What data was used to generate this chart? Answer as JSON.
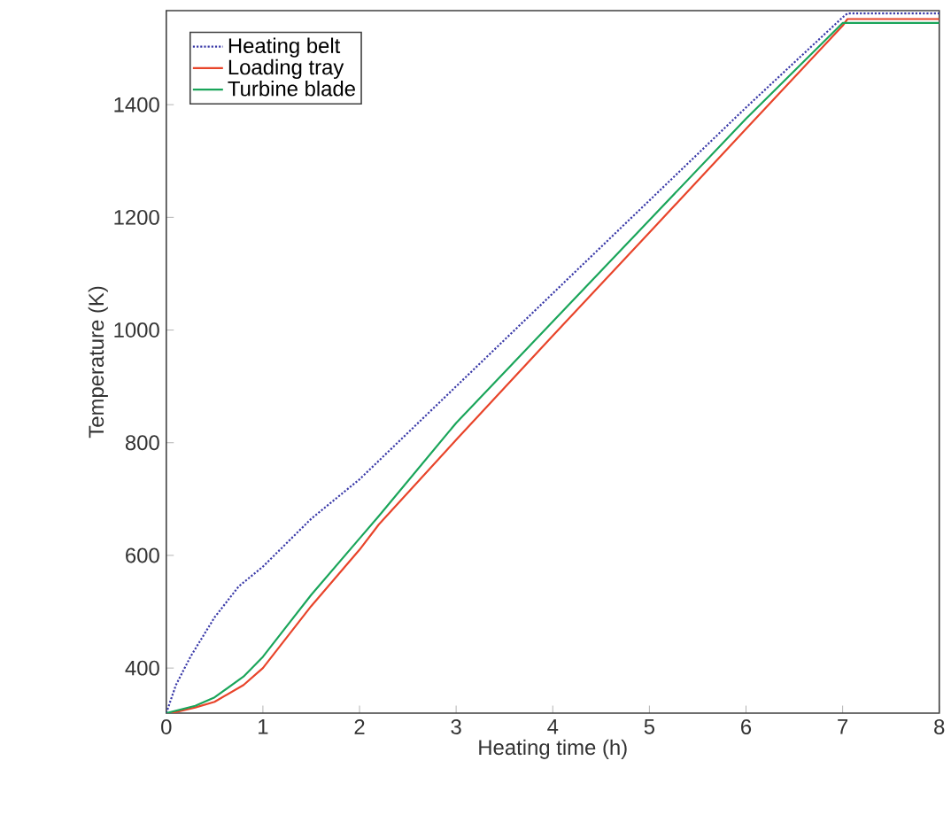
{
  "chart_data": {
    "type": "line",
    "xlabel": "Heating time (h)",
    "ylabel": "Temperature (K)",
    "xlim": [
      0,
      8
    ],
    "ylim": [
      320,
      1567
    ],
    "xticks": [
      0,
      1,
      2,
      3,
      4,
      5,
      6,
      7,
      8
    ],
    "yticks": [
      400,
      600,
      800,
      1000,
      1200,
      1400
    ],
    "grid": false,
    "legend": "top left",
    "marker": "none",
    "series": [
      {
        "name": "Heating belt",
        "color": "#3a3aa8",
        "line_style": "dotted",
        "x": [
          0,
          0.1,
          0.25,
          0.5,
          0.75,
          1,
          1.5,
          2,
          3,
          4,
          5,
          6,
          7,
          7.05,
          8
        ],
        "values": [
          320,
          370,
          420,
          490,
          545,
          580,
          665,
          735,
          900,
          1065,
          1230,
          1395,
          1555,
          1562,
          1562
        ]
      },
      {
        "name": "Loading tray",
        "color": "#e8442a",
        "line_style": "solid",
        "x": [
          0.05,
          0.3,
          0.5,
          0.8,
          1,
          1.25,
          1.5,
          2,
          2.2,
          3,
          4,
          5,
          6,
          7,
          7.05,
          8
        ],
        "values": [
          320,
          330,
          340,
          370,
          400,
          455,
          510,
          610,
          655,
          805,
          990,
          1173,
          1357,
          1540,
          1552,
          1552
        ]
      },
      {
        "name": "Turbine blade",
        "color": "#1aa55a",
        "line_style": "solid",
        "x": [
          0,
          0.3,
          0.5,
          0.8,
          1,
          1.25,
          1.5,
          2,
          2.2,
          3,
          4,
          5,
          6,
          7,
          8
        ],
        "values": [
          320,
          333,
          348,
          385,
          420,
          475,
          530,
          630,
          670,
          835,
          1015,
          1195,
          1375,
          1545,
          1545
        ]
      }
    ]
  }
}
